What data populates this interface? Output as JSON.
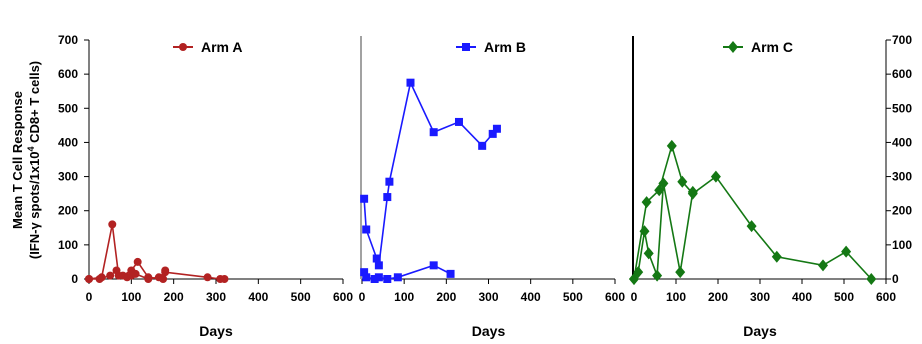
{
  "chart_data": {
    "type": "line",
    "ylabel_line1": "Mean T Cell Response",
    "ylabel_line2": "(IFN-γ spots/1x10",
    "ylabel_sup": "4",
    "ylabel_line2_end": " CD8+ T cells)",
    "ylim": [
      0,
      700
    ],
    "yticks": [
      0,
      100,
      200,
      300,
      400,
      500,
      600,
      700
    ],
    "xlim": [
      0,
      600
    ],
    "xticks": [
      0,
      100,
      200,
      300,
      400,
      500,
      600
    ],
    "xlabel": "Days",
    "panels": [
      {
        "legend": "Arm A",
        "color": "#b22222",
        "marker": "circle",
        "series": [
          {
            "x": [
              0,
              30,
              55,
              70,
              90,
              100,
              110,
              140,
              165,
              180,
              280,
              310,
              320
            ],
            "y": [
              0,
              5,
              160,
              10,
              5,
              10,
              15,
              0,
              5,
              20,
              5,
              0,
              0
            ]
          },
          {
            "x": [
              0,
              25,
              50,
              65,
              80,
              100,
              115,
              140,
              175,
              180
            ],
            "y": [
              0,
              0,
              10,
              25,
              10,
              25,
              50,
              5,
              0,
              25
            ]
          }
        ]
      },
      {
        "legend": "Arm B",
        "color": "#1a1aff",
        "marker": "square",
        "series": [
          {
            "x": [
              5,
              10,
              35,
              40,
              60,
              65,
              115,
              170,
              230,
              285,
              310,
              320
            ],
            "y": [
              235,
              145,
              60,
              40,
              240,
              285,
              575,
              430,
              460,
              390,
              425,
              440
            ]
          },
          {
            "x": [
              5,
              10,
              30,
              40,
              60,
              85,
              170,
              210
            ],
            "y": [
              20,
              5,
              0,
              5,
              0,
              5,
              40,
              15
            ]
          }
        ]
      },
      {
        "legend": "Arm C",
        "color": "#147814",
        "marker": "diamond",
        "series": [
          {
            "x": [
              0,
              30,
              60,
              90,
              115,
              140,
              195,
              280,
              340,
              450,
              505,
              565
            ],
            "y": [
              0,
              225,
              260,
              390,
              285,
              250,
              300,
              155,
              65,
              40,
              80,
              0
            ]
          },
          {
            "x": [
              0,
              10,
              25,
              35,
              55,
              70,
              110,
              140
            ],
            "y": [
              0,
              20,
              140,
              75,
              10,
              280,
              20,
              255
            ]
          }
        ]
      }
    ]
  }
}
